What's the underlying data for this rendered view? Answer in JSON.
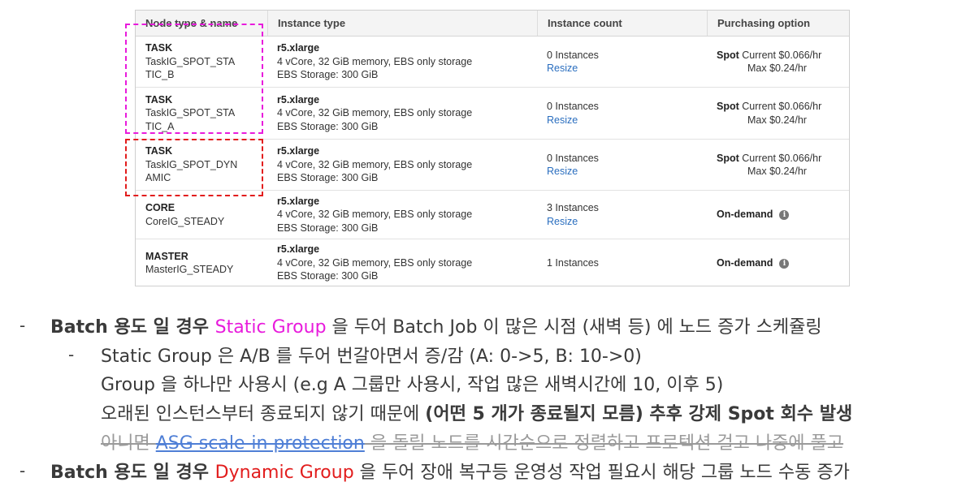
{
  "table": {
    "headers": [
      "Node type & name",
      "Instance type",
      "Instance count",
      "Purchasing option"
    ],
    "rows": [
      {
        "node_type": "TASK",
        "node_name": "TaskIG_SPOT_STATIC_B",
        "name_line1": "TaskIG_SPOT_STA",
        "name_line2": "TIC_B",
        "instance_type": "r5.xlarge",
        "spec": "4 vCore, 32 GiB memory, EBS only storage",
        "storage": "EBS Storage:  300 GiB",
        "count": "0 Instances",
        "resize": "Resize",
        "purchase_type": "Spot",
        "purchase_current": "Current $0.066/hr",
        "purchase_max": "Max $0.24/hr"
      },
      {
        "node_type": "TASK",
        "node_name": "TaskIG_SPOT_STATIC_A",
        "name_line1": "TaskIG_SPOT_STA",
        "name_line2": "TIC_A",
        "instance_type": "r5.xlarge",
        "spec": "4 vCore, 32 GiB memory, EBS only storage",
        "storage": "EBS Storage:  300 GiB",
        "count": "0 Instances",
        "resize": "Resize",
        "purchase_type": "Spot",
        "purchase_current": "Current $0.066/hr",
        "purchase_max": "Max $0.24/hr"
      },
      {
        "node_type": "TASK",
        "node_name": "TaskIG_SPOT_DYNAMIC",
        "name_line1": "TaskIG_SPOT_DYN",
        "name_line2": "AMIC",
        "instance_type": "r5.xlarge",
        "spec": "4 vCore, 32 GiB memory, EBS only storage",
        "storage": "EBS Storage:  300 GiB",
        "count": "0 Instances",
        "resize": "Resize",
        "purchase_type": "Spot",
        "purchase_current": "Current $0.066/hr",
        "purchase_max": "Max $0.24/hr"
      },
      {
        "node_type": "CORE",
        "name_line1": "CoreIG_STEADY",
        "instance_type": "r5.xlarge",
        "spec": "4 vCore, 32 GiB memory, EBS only storage",
        "storage": "EBS Storage:  300 GiB",
        "count": "3 Instances",
        "resize": "Resize",
        "purchase_type": "On-demand"
      },
      {
        "node_type": "MASTER",
        "name_line1": "MasterIG_STEADY",
        "instance_type": "r5.xlarge",
        "spec": "4 vCore, 32 GiB memory, EBS only storage",
        "storage": "EBS Storage:  300 GiB",
        "count": "1 Instances",
        "purchase_type": "On-demand"
      }
    ]
  },
  "colors": {
    "static_group": "#e81bdc",
    "dynamic_group": "#e21d1d",
    "link": "#2a6ebf"
  },
  "notes": {
    "bullet1": {
      "prefix": "Batch 용도 일 경우 ",
      "highlight": "Static Group",
      "suffix": " 을 두어 Batch Job 이 많은 시점 (새벽 등) 에 노드 증가 스케쥴링"
    },
    "sub": {
      "line1": "Static Group 은 A/B 를 두어 번갈아면서 증/감 (A: 0->5, B: 10->0)",
      "line2": "Group 을 하나만 사용시 (e.g A 그룹만 사용시, 작업 많은 새벽시간에 10, 이후 5)",
      "line3_prefix": "오래된 인스턴스부터 종료되지 않기 때문에 ",
      "line3_bold": "(어떤 5 개가 종료될지 모름) 추후 강제 Spot 회수 발생",
      "line4_prefix": "아니면 ",
      "line4_link": "ASG scale-in protection",
      "line4_suffix": " 을 돌릴 노드를 시간순으로 정렬하고 프로텍션 걸고 나중에 풀고"
    },
    "bullet2": {
      "prefix": "Batch 용도 일 경우 ",
      "highlight": "Dynamic Group",
      "suffix": " 을 두어 장애 복구등 운영성 작업 필요시 해당 그룹 노드 수동 증가"
    }
  }
}
